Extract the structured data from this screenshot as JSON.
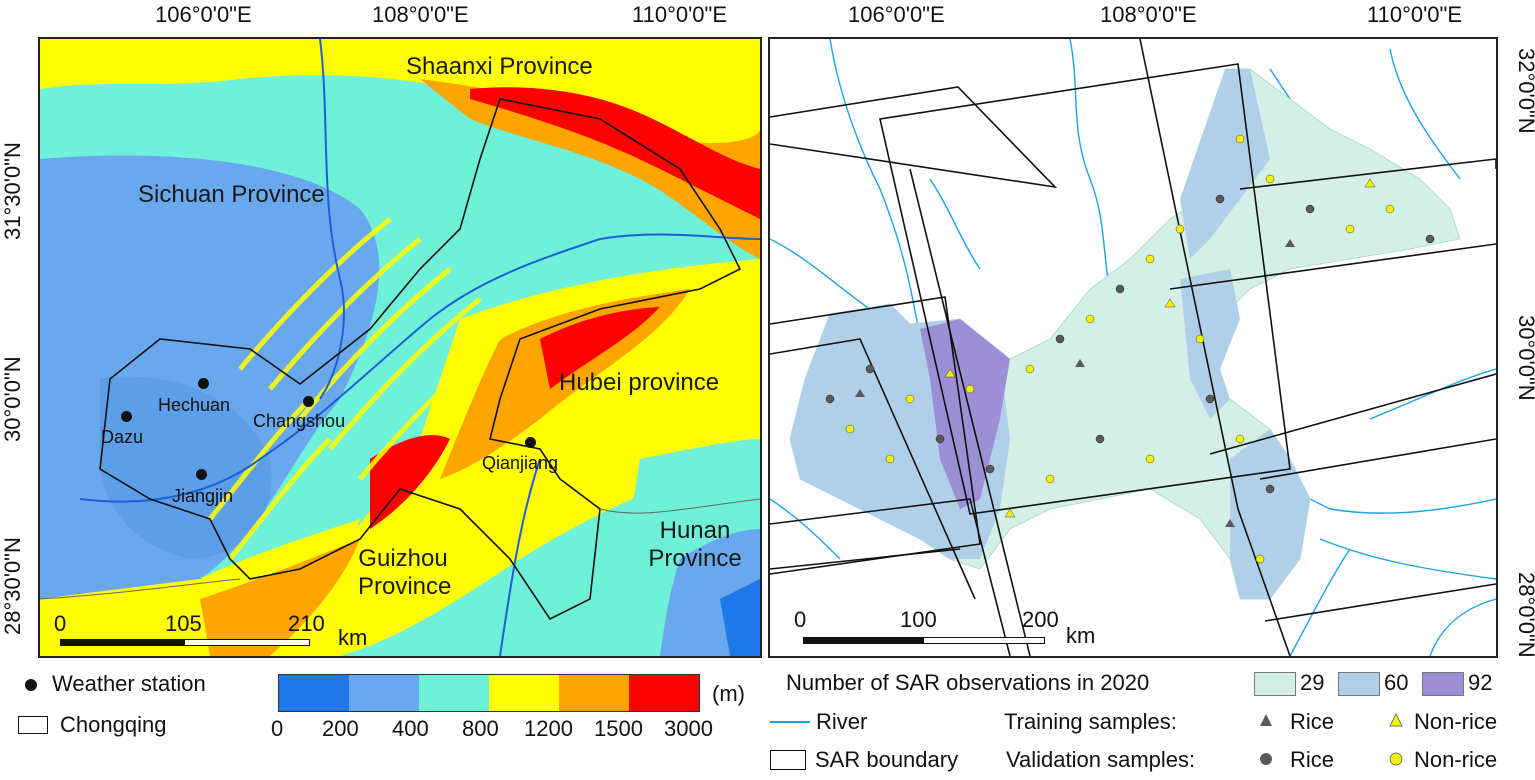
{
  "left_map": {
    "top_ticks": [
      "106°0'0\"E",
      "108°0'0\"E",
      "110°0'0\"E"
    ],
    "left_ticks": [
      "31°30'0\"N",
      "30°0'0\"N",
      "28°30'0\"N"
    ],
    "provinces": {
      "shaanxi": "Shaanxi Province",
      "sichuan": "Sichuan Province",
      "hubei": "Hubei province",
      "guizhou_1": "Guizhou",
      "guizhou_2": "Province",
      "hunan_1": "Hunan",
      "hunan_2": "Province"
    },
    "stations": [
      "Hechuan",
      "Dazu",
      "Changshou",
      "Jiangjin",
      "Qianjiang"
    ],
    "scale": {
      "labels": [
        "0",
        "105",
        "210"
      ],
      "unit": "km"
    }
  },
  "right_map": {
    "top_ticks": [
      "106°0'0\"E",
      "108°0'0\"E",
      "110°0'0\"E"
    ],
    "right_ticks": [
      "32°0'0\"N",
      "30°0'0\"N",
      "28°0'0\"N"
    ],
    "scale": {
      "labels": [
        "0",
        "100",
        "200"
      ],
      "unit": "km"
    }
  },
  "legend_left": {
    "weather_station": "Weather station",
    "chongqing": "Chongqing",
    "elevation_unit": "(m)",
    "elevation_breaks": [
      "0",
      "200",
      "400",
      "800",
      "1200",
      "1500",
      "3000"
    ],
    "elevation_colors": [
      "#1f78e8",
      "#6aa8ee",
      "#6ff0d8",
      "#ffff00",
      "#ffa500",
      "#ff0000"
    ]
  },
  "legend_right": {
    "sar_title": "Number of SAR observations in 2020",
    "sar_classes": [
      {
        "label": "29",
        "color": "#d3efe6"
      },
      {
        "label": "60",
        "color": "#b0d0ea"
      },
      {
        "label": "92",
        "color": "#9d8fd6"
      }
    ],
    "river": "River",
    "sar_boundary": "SAR boundary",
    "training": "Training samples:",
    "validation": "Validation samples:",
    "rice": "Rice",
    "non_rice": "Non-rice"
  },
  "colors": {
    "river": "#1aa3e8",
    "sample_rice": "#5a5a5a",
    "sample_nonrice": "#f2f200"
  }
}
